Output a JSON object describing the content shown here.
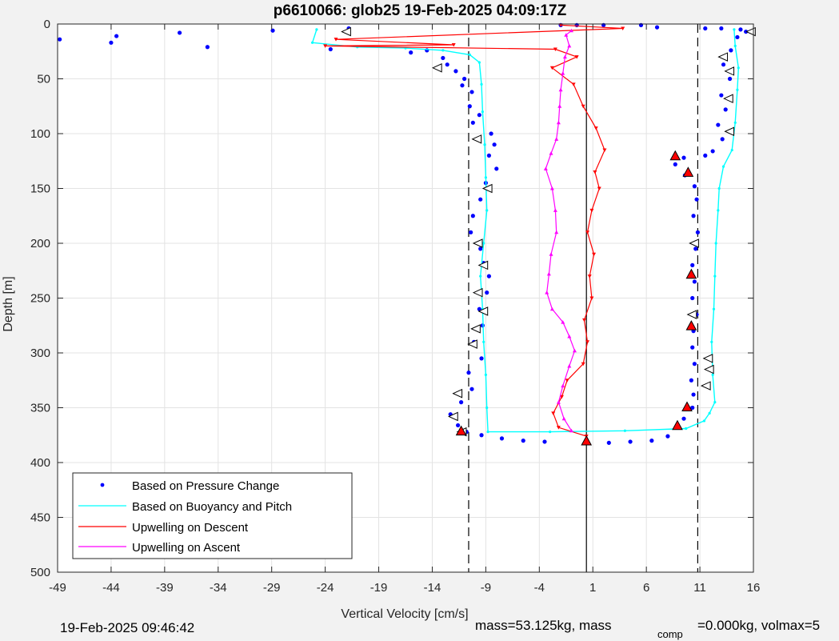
{
  "chart_data": {
    "type": "scatter",
    "title": "p6610066: glob25 19-Feb-2025 04:09:17Z",
    "xlabel": "Vertical Velocity [cm/s]",
    "ylabel": "Depth [m]",
    "xlim": [
      -49,
      16
    ],
    "ylim": [
      0,
      500
    ],
    "y_reversed": true,
    "grid": true,
    "legend_location": "bottom-left",
    "xticks": [
      -49,
      -44,
      -39,
      -34,
      -29,
      -24,
      -19,
      -14,
      -9,
      -4,
      1,
      6,
      11,
      16
    ],
    "yticks": [
      0,
      50,
      100,
      150,
      200,
      250,
      300,
      350,
      400,
      450,
      500
    ],
    "xtick_labels": [
      "-49",
      "-44",
      "-39",
      "-34",
      "-29",
      "-24",
      "-19",
      "-14",
      "-9",
      "-4",
      "1",
      "6",
      "11",
      "16"
    ],
    "ytick_labels": [
      "0",
      "50",
      "100",
      "150",
      "200",
      "250",
      "300",
      "350",
      "400",
      "450",
      "500"
    ],
    "reference_lines": [
      {
        "x": -10.6,
        "style": "dashed"
      },
      {
        "x": 0.4,
        "style": "solid"
      },
      {
        "x": 10.8,
        "style": "dashed"
      }
    ],
    "series": [
      {
        "name": "Based on Pressure Change",
        "color": "#0000ff",
        "marker": "dot",
        "descent": [
          [
            -48.8,
            14
          ],
          [
            -43.5,
            11
          ],
          [
            -44,
            17
          ],
          [
            -37.6,
            8
          ],
          [
            -35,
            21
          ],
          [
            -28.9,
            6
          ],
          [
            -23.5,
            23
          ],
          [
            -21.8,
            4
          ],
          [
            -16,
            26
          ],
          [
            -14.5,
            24
          ],
          [
            -13,
            31
          ],
          [
            -12.6,
            37
          ],
          [
            -11.8,
            43
          ],
          [
            -11,
            50
          ],
          [
            -11.2,
            56
          ],
          [
            -10.3,
            62
          ],
          [
            -10.5,
            75
          ],
          [
            -9.6,
            83
          ],
          [
            -10.2,
            90
          ],
          [
            -8.5,
            100
          ],
          [
            -8.2,
            110
          ],
          [
            -8.7,
            120
          ],
          [
            -8,
            132
          ],
          [
            -9,
            145
          ],
          [
            -9.5,
            160
          ],
          [
            -10.2,
            175
          ],
          [
            -10.4,
            190
          ],
          [
            -9.5,
            205
          ],
          [
            -9.2,
            218
          ],
          [
            -8.7,
            230
          ],
          [
            -8.9,
            245
          ],
          [
            -9.6,
            260
          ],
          [
            -9.3,
            275
          ],
          [
            -10.1,
            290
          ],
          [
            -9.4,
            305
          ],
          [
            -10.6,
            318
          ],
          [
            -10.3,
            333
          ],
          [
            -11.3,
            345
          ],
          [
            -12.3,
            356
          ],
          [
            -11.6,
            366
          ],
          [
            -10.8,
            372
          ],
          [
            -9.4,
            375
          ],
          [
            -7.5,
            378
          ],
          [
            -5.5,
            380
          ],
          [
            -3.5,
            381
          ],
          [
            0.4,
            382
          ]
        ],
        "ascent": [
          [
            0.4,
            382
          ],
          [
            2.5,
            382
          ],
          [
            4.5,
            381
          ],
          [
            6.5,
            380
          ],
          [
            8,
            376
          ],
          [
            8.8,
            368
          ],
          [
            9.5,
            360
          ],
          [
            10.3,
            350
          ],
          [
            10.4,
            338
          ],
          [
            10.2,
            325
          ],
          [
            10.5,
            310
          ],
          [
            10.3,
            295
          ],
          [
            10.4,
            280
          ],
          [
            10.7,
            265
          ],
          [
            10.3,
            250
          ],
          [
            10.5,
            235
          ],
          [
            10.3,
            220
          ],
          [
            10.6,
            205
          ],
          [
            10.8,
            190
          ],
          [
            10.4,
            175
          ],
          [
            10.7,
            160
          ],
          [
            10.5,
            148
          ],
          [
            9.6,
            138
          ],
          [
            8.7,
            128
          ],
          [
            9.5,
            122
          ],
          [
            11.5,
            120
          ],
          [
            12.2,
            116
          ],
          [
            13.1,
            105
          ],
          [
            12.7,
            92
          ],
          [
            13.4,
            78
          ],
          [
            13,
            65
          ],
          [
            13.8,
            50
          ],
          [
            13.2,
            37
          ],
          [
            13.9,
            24
          ],
          [
            14.5,
            12
          ],
          [
            15.3,
            7
          ],
          [
            14.8,
            5
          ],
          [
            13,
            4
          ],
          [
            11.5,
            4
          ],
          [
            7,
            3
          ],
          [
            5.5,
            1
          ],
          [
            2,
            1
          ],
          [
            -0.5,
            1
          ],
          [
            -2,
            1
          ]
        ]
      },
      {
        "name": "Based on Buoyancy and Pitch",
        "color": "#00ffff",
        "marker": "line",
        "descent": [
          [
            -24.8,
            5
          ],
          [
            -25.2,
            17
          ],
          [
            -21,
            21
          ],
          [
            -16.5,
            22
          ],
          [
            -13,
            24
          ],
          [
            -10.5,
            28
          ],
          [
            -9.6,
            35
          ],
          [
            -9.4,
            55
          ],
          [
            -9.3,
            80
          ],
          [
            -9.1,
            110
          ],
          [
            -9,
            140
          ],
          [
            -8.9,
            170
          ],
          [
            -9.2,
            200
          ],
          [
            -9.5,
            230
          ],
          [
            -9.3,
            260
          ],
          [
            -9.2,
            290
          ],
          [
            -9,
            320
          ],
          [
            -8.9,
            350
          ],
          [
            -8.8,
            372
          ],
          [
            -3,
            372
          ],
          [
            4,
            371
          ],
          [
            9.7,
            369
          ]
        ],
        "ascent": [
          [
            9.7,
            369
          ],
          [
            11.4,
            362
          ],
          [
            11.9,
            355
          ],
          [
            12.4,
            345
          ],
          [
            12.2,
            320
          ],
          [
            12.1,
            290
          ],
          [
            12.3,
            260
          ],
          [
            12.4,
            230
          ],
          [
            12.5,
            200
          ],
          [
            12.7,
            170
          ],
          [
            12.8,
            150
          ],
          [
            13.2,
            130
          ],
          [
            14,
            115
          ],
          [
            14.3,
            90
          ],
          [
            14.5,
            60
          ],
          [
            14.6,
            40
          ],
          [
            14.3,
            20
          ],
          [
            14.2,
            5
          ]
        ]
      },
      {
        "name": "Upwelling on Descent",
        "color": "#ff0000",
        "marker": "triangle-down",
        "descent": [
          [
            -2,
            1
          ],
          [
            3.8,
            4
          ],
          [
            -23,
            14
          ],
          [
            -12,
            19
          ],
          [
            -24,
            20
          ],
          [
            -2.5,
            23
          ],
          [
            -0.5,
            30
          ],
          [
            -2.8,
            40
          ],
          [
            -0.8,
            55
          ],
          [
            0.1,
            75
          ],
          [
            1.3,
            95
          ],
          [
            2.1,
            115
          ],
          [
            1.2,
            135
          ],
          [
            1.6,
            150
          ],
          [
            0.9,
            170
          ],
          [
            0.5,
            190
          ],
          [
            1.1,
            210
          ],
          [
            0.7,
            230
          ],
          [
            0.9,
            250
          ],
          [
            0.2,
            270
          ],
          [
            0.5,
            290
          ],
          [
            0.1,
            310
          ],
          [
            -1.4,
            325
          ],
          [
            -1.9,
            340
          ],
          [
            -2.7,
            355
          ],
          [
            -2.2,
            368
          ],
          [
            0.4,
            376
          ],
          [
            0.4,
            382
          ]
        ]
      },
      {
        "name": "Upwelling on Ascent",
        "color": "#ff00ff",
        "marker": "triangle-up",
        "ascent": [
          [
            -1,
            371
          ],
          [
            -1.7,
            360
          ],
          [
            -2.2,
            345
          ],
          [
            -1.8,
            330
          ],
          [
            -1.2,
            312
          ],
          [
            -0.7,
            298
          ],
          [
            -1.2,
            285
          ],
          [
            -1.8,
            272
          ],
          [
            -2.8,
            260
          ],
          [
            -3.3,
            245
          ],
          [
            -3.1,
            228
          ],
          [
            -2.9,
            210
          ],
          [
            -2.4,
            190
          ],
          [
            -2.5,
            170
          ],
          [
            -2.8,
            150
          ],
          [
            -3.4,
            132
          ],
          [
            -2.9,
            118
          ],
          [
            -2.4,
            105
          ],
          [
            -2.2,
            90
          ],
          [
            -2.1,
            75
          ],
          [
            -2.0,
            60
          ],
          [
            -1.8,
            45
          ],
          [
            -1.6,
            30
          ],
          [
            -1.2,
            20
          ],
          [
            -1.5,
            10
          ],
          [
            -1,
            6
          ]
        ]
      }
    ],
    "triangle_markers": {
      "white_left": [
        [
          -22,
          7
        ],
        [
          -13.5,
          40
        ],
        [
          -9.8,
          105
        ],
        [
          -8.8,
          150
        ],
        [
          -9.7,
          200
        ],
        [
          -9.2,
          220
        ],
        [
          -9.7,
          245
        ],
        [
          -9.2,
          262
        ],
        [
          -9.9,
          278
        ],
        [
          -10.2,
          292
        ],
        [
          -11.6,
          337
        ],
        [
          -12,
          358
        ],
        [
          -11.2,
          372
        ],
        [
          13.8,
          98
        ],
        [
          13.7,
          68
        ],
        [
          13.8,
          43
        ],
        [
          13.2,
          30
        ],
        [
          15.8,
          7
        ],
        [
          10.5,
          200
        ],
        [
          10.3,
          265
        ],
        [
          11.9,
          315
        ],
        [
          11.6,
          330
        ],
        [
          11.8,
          305
        ]
      ],
      "red_up": [
        [
          8.7,
          121
        ],
        [
          9.9,
          136
        ],
        [
          10.2,
          229
        ],
        [
          10.2,
          276
        ],
        [
          9.8,
          350
        ],
        [
          8.9,
          367
        ],
        [
          0.4,
          381
        ],
        [
          -11.3,
          372
        ]
      ]
    }
  },
  "legend": {
    "entries": [
      "Based on Pressure Change",
      "Based on Buoyancy and Pitch",
      "Upwelling on Descent",
      "Upwelling on Ascent"
    ]
  },
  "footer": {
    "timestamp": "19-Feb-2025 09:46:42",
    "mass_text": "mass=53.125kg, mass",
    "comp_sub": "comp",
    "mass_comp_text": "=0.000kg, volmax=5"
  }
}
